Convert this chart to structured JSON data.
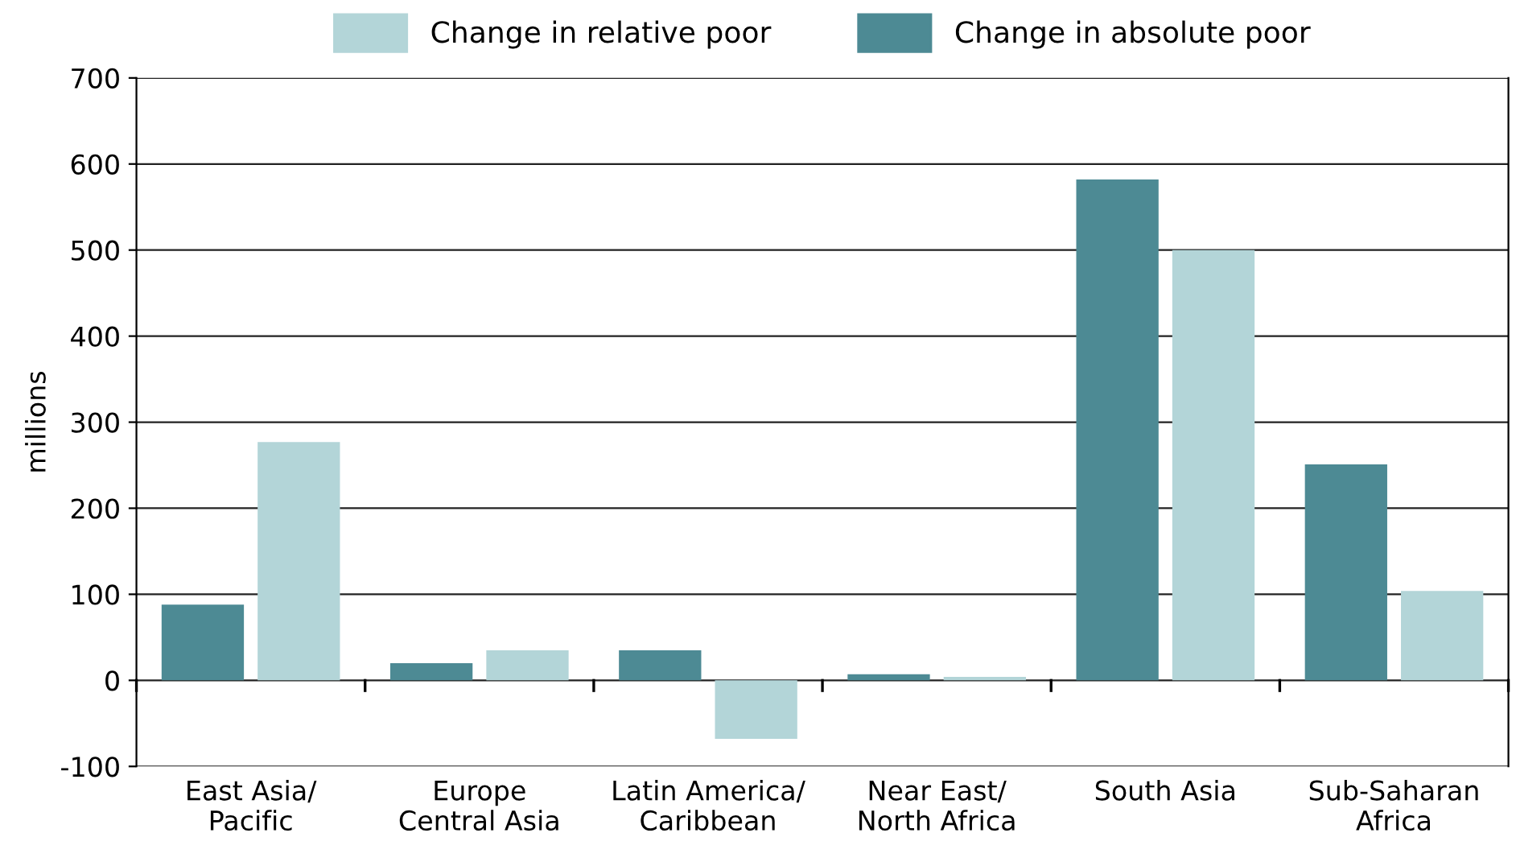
{
  "chart_data": {
    "type": "bar",
    "ylabel": "millions",
    "categories": [
      "East Asia/\nPacific",
      "Europe\nCentral Asia",
      "Latin America/\nCaribbean",
      "Near East/\nNorth Africa",
      "South Asia",
      "Sub-Saharan\nAfrica"
    ],
    "series": [
      {
        "name": "Change in absolute poor",
        "color": "#4d8a94",
        "values": [
          88,
          20,
          35,
          7,
          582,
          251
        ]
      },
      {
        "name": "Change in relative poor",
        "color": "#b3d5d8",
        "values": [
          277,
          35,
          -68,
          4,
          500,
          104
        ]
      }
    ],
    "ylim": [
      -100,
      700
    ],
    "yticks": [
      -100,
      0,
      100,
      200,
      300,
      400,
      500,
      600,
      700
    ],
    "grid": "y",
    "legend": "top"
  }
}
